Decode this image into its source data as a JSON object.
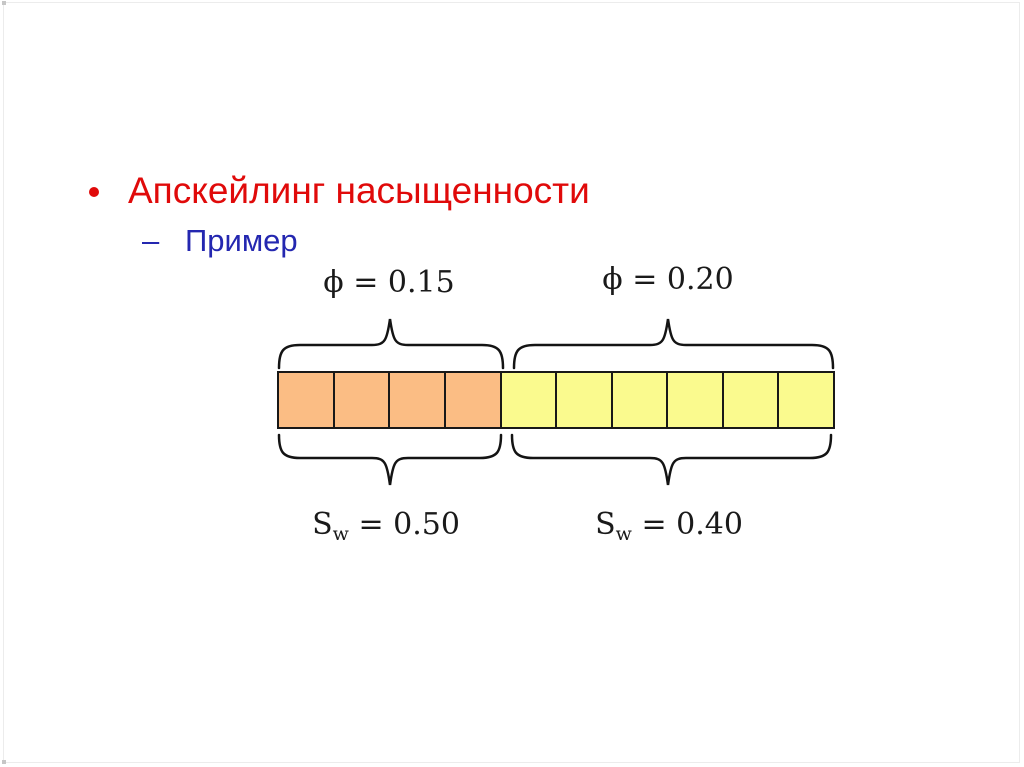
{
  "slide": {
    "title_bullet": "Апскейлинг насыщенности",
    "sub_bullet_dash": "–",
    "sub_bullet": "Пример"
  },
  "diagram": {
    "left": {
      "phi_label": "ϕ = 0.15",
      "sw_base": "S",
      "sw_sub": "w",
      "sw_rest": " = 0.50",
      "cells": {
        "count": 4,
        "color": "#fbbd84"
      }
    },
    "right": {
      "phi_label": "ϕ = 0.20",
      "sw_base": "S",
      "sw_sub": "w",
      "sw_rest": " = 0.40",
      "cells": {
        "count": 6,
        "color": "#fafa8e"
      }
    }
  },
  "colors": {
    "title_red": "#e00a0a",
    "sub_blue": "#2427b0",
    "cell_border": "#181818",
    "brace_stroke": "#141414",
    "label_black": "#1a1a1a",
    "left_cell_fill": "#fbbd84",
    "right_cell_fill": "#fafa8e"
  }
}
